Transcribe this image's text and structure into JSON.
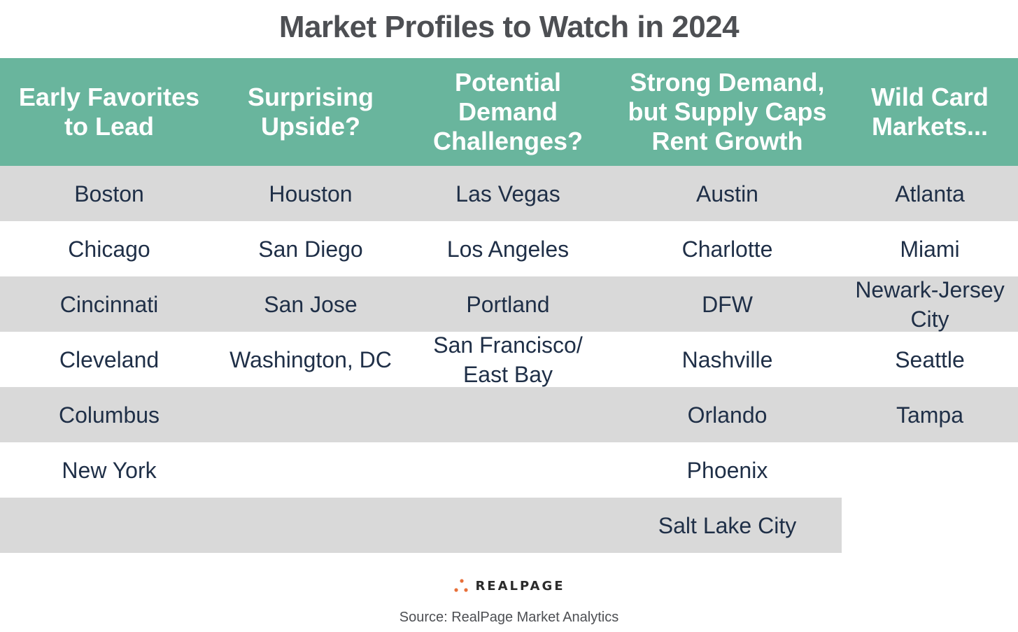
{
  "title": "Market Profiles to Watch in 2024",
  "columns": [
    "Early Favorites\nto Lead",
    "Surprising\nUpside?",
    "Potential\nDemand\nChallenges?",
    "Strong Demand,\nbut Supply Caps\nRent Growth",
    "Wild Card\nMarkets..."
  ],
  "rows": [
    [
      "Boston",
      "Houston",
      "Las Vegas",
      "Austin",
      "Atlanta"
    ],
    [
      "Chicago",
      "San Diego",
      "Los Angeles",
      "Charlotte",
      "Miami"
    ],
    [
      "Cincinnati",
      "San Jose",
      "Portland",
      "DFW",
      "Newark-Jersey\nCity"
    ],
    [
      "Cleveland",
      "Washington, DC",
      "San Francisco/\nEast Bay",
      "Nashville",
      "Seattle"
    ],
    [
      "Columbus",
      "",
      "",
      "Orlando",
      "Tampa"
    ],
    [
      "New York",
      "",
      "",
      "Phoenix",
      ""
    ],
    [
      "",
      "",
      "",
      "Salt Lake City",
      ""
    ]
  ],
  "logo": {
    "text": "REALPAGE",
    "dot_color": "#e8703a"
  },
  "source": "Source: RealPage Market Analytics",
  "colors": {
    "header_bg": "#69b59d",
    "shade_bg": "#d9d9d9",
    "text": "#1f2f47",
    "title": "#4d4f53"
  }
}
